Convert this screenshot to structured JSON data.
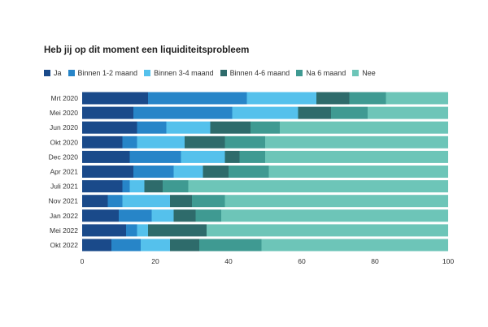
{
  "chart_data": {
    "type": "bar",
    "orientation": "horizontal",
    "stacked": true,
    "title": "Heb jij op dit moment een liquiditeitsprobleem",
    "categories": [
      "Mrt 2020",
      "Mei 2020",
      "Jun 2020",
      "Okt 2020",
      "Dec 2020",
      "Apr 2021",
      "Juli 2021",
      "Nov 2021",
      "Jan 2022",
      "Mei 2022",
      "Okt 2022"
    ],
    "series": [
      {
        "name": "Ja",
        "color": "#1a4a8a",
        "values": [
          18,
          14,
          15,
          11,
          13,
          14,
          11,
          7,
          10,
          12,
          8
        ]
      },
      {
        "name": "Binnen 1-2 maand",
        "color": "#2785c8",
        "values": [
          27,
          27,
          8,
          4,
          14,
          11,
          2,
          4,
          9,
          3,
          8
        ]
      },
      {
        "name": "Binnen 3-4 maand",
        "color": "#55c1ec",
        "values": [
          19,
          18,
          12,
          13,
          12,
          8,
          4,
          13,
          6,
          3,
          8
        ]
      },
      {
        "name": "Binnen 4-6 maand",
        "color": "#2e6b6b",
        "values": [
          9,
          9,
          11,
          11,
          4,
          7,
          5,
          6,
          6,
          16,
          8
        ]
      },
      {
        "name": "Na 6 maand",
        "color": "#3f9a92",
        "values": [
          10,
          10,
          8,
          11,
          7,
          11,
          7,
          9,
          7,
          0,
          17
        ]
      },
      {
        "name": "Nee",
        "color": "#6dc5b8",
        "values": [
          17,
          22,
          46,
          50,
          50,
          49,
          71,
          61,
          62,
          66,
          51
        ]
      }
    ],
    "xlim": [
      0,
      100
    ],
    "xticks": [
      0,
      20,
      40,
      60,
      80,
      100
    ],
    "legend_position": "top-left",
    "grid": false
  }
}
